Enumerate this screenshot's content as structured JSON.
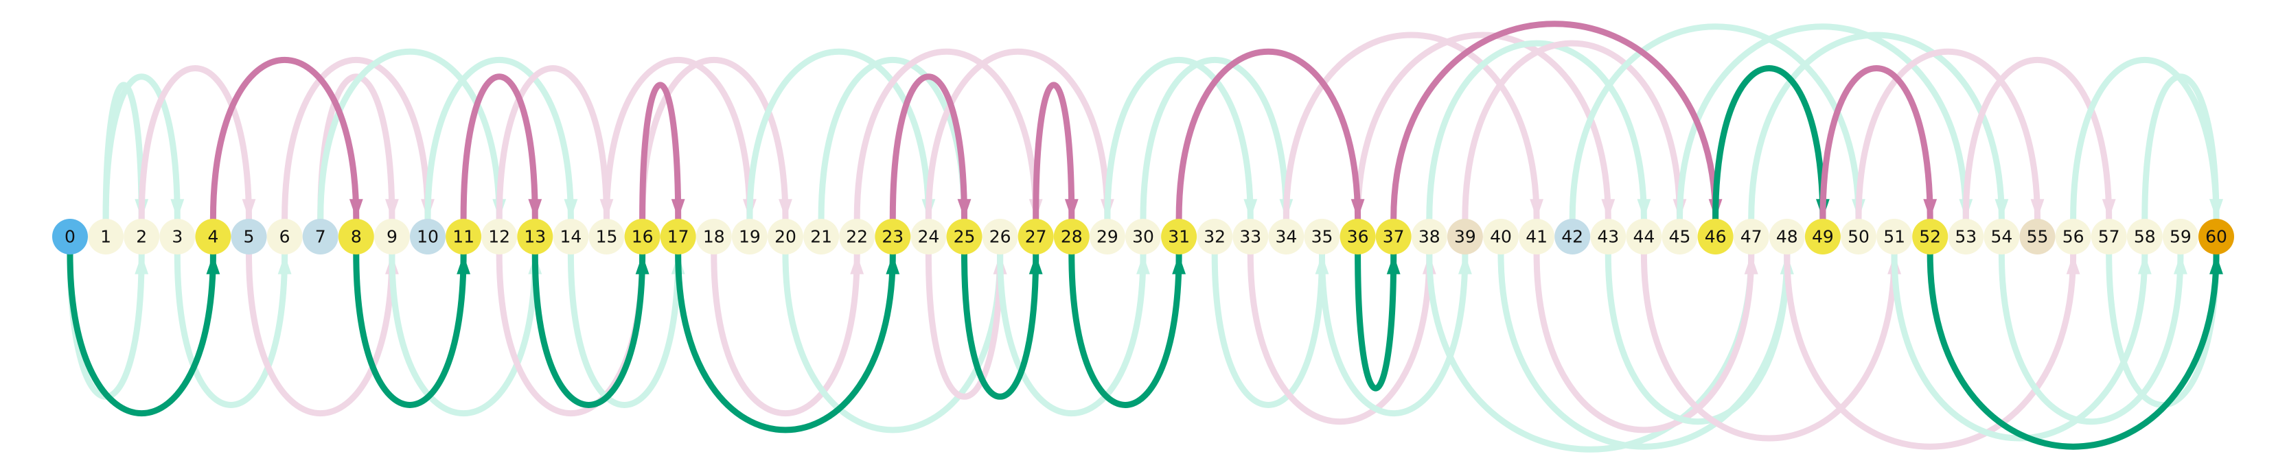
{
  "colors": {
    "green": "#009e73",
    "pink": "#cc79a7",
    "green_faint": "#cdf3e8",
    "pink_faint": "#f0d7e5",
    "node_default": "#f7f5dc",
    "node_yellow": "#f0e442",
    "node_blue": "#56b4e9",
    "node_lightblue": "#c3dde8",
    "node_beige": "#ebdfc4",
    "node_orange": "#e69f00"
  },
  "nodes": [
    {
      "label": "0",
      "color": "#56b4e9"
    },
    {
      "label": "1",
      "color": "#f7f5dc"
    },
    {
      "label": "2",
      "color": "#f7f5dc"
    },
    {
      "label": "3",
      "color": "#f7f5dc"
    },
    {
      "label": "4",
      "color": "#f0e442"
    },
    {
      "label": "5",
      "color": "#c3dde8"
    },
    {
      "label": "6",
      "color": "#f7f5dc"
    },
    {
      "label": "7",
      "color": "#c3dde8"
    },
    {
      "label": "8",
      "color": "#f0e442"
    },
    {
      "label": "9",
      "color": "#f7f5dc"
    },
    {
      "label": "10",
      "color": "#c3dde8"
    },
    {
      "label": "11",
      "color": "#f0e442"
    },
    {
      "label": "12",
      "color": "#f7f5dc"
    },
    {
      "label": "13",
      "color": "#f0e442"
    },
    {
      "label": "14",
      "color": "#f7f5dc"
    },
    {
      "label": "15",
      "color": "#f7f5dc"
    },
    {
      "label": "16",
      "color": "#f0e442"
    },
    {
      "label": "17",
      "color": "#f0e442"
    },
    {
      "label": "18",
      "color": "#f7f5dc"
    },
    {
      "label": "19",
      "color": "#f7f5dc"
    },
    {
      "label": "20",
      "color": "#f7f5dc"
    },
    {
      "label": "21",
      "color": "#f7f5dc"
    },
    {
      "label": "22",
      "color": "#f7f5dc"
    },
    {
      "label": "23",
      "color": "#f0e442"
    },
    {
      "label": "24",
      "color": "#f7f5dc"
    },
    {
      "label": "25",
      "color": "#f0e442"
    },
    {
      "label": "26",
      "color": "#f7f5dc"
    },
    {
      "label": "27",
      "color": "#f0e442"
    },
    {
      "label": "28",
      "color": "#f0e442"
    },
    {
      "label": "29",
      "color": "#f7f5dc"
    },
    {
      "label": "30",
      "color": "#f7f5dc"
    },
    {
      "label": "31",
      "color": "#f0e442"
    },
    {
      "label": "32",
      "color": "#f7f5dc"
    },
    {
      "label": "33",
      "color": "#f7f5dc"
    },
    {
      "label": "34",
      "color": "#f7f5dc"
    },
    {
      "label": "35",
      "color": "#f7f5dc"
    },
    {
      "label": "36",
      "color": "#f0e442"
    },
    {
      "label": "37",
      "color": "#f0e442"
    },
    {
      "label": "38",
      "color": "#f7f5dc"
    },
    {
      "label": "39",
      "color": "#ebdfc4"
    },
    {
      "label": "40",
      "color": "#f7f5dc"
    },
    {
      "label": "41",
      "color": "#f7f5dc"
    },
    {
      "label": "42",
      "color": "#c3dde8"
    },
    {
      "label": "43",
      "color": "#f7f5dc"
    },
    {
      "label": "44",
      "color": "#f7f5dc"
    },
    {
      "label": "45",
      "color": "#f7f5dc"
    },
    {
      "label": "46",
      "color": "#f0e442"
    },
    {
      "label": "47",
      "color": "#f7f5dc"
    },
    {
      "label": "48",
      "color": "#f7f5dc"
    },
    {
      "label": "49",
      "color": "#f0e442"
    },
    {
      "label": "50",
      "color": "#f7f5dc"
    },
    {
      "label": "51",
      "color": "#f7f5dc"
    },
    {
      "label": "52",
      "color": "#f0e442"
    },
    {
      "label": "53",
      "color": "#f7f5dc"
    },
    {
      "label": "54",
      "color": "#f7f5dc"
    },
    {
      "label": "55",
      "color": "#ebdfc4"
    },
    {
      "label": "56",
      "color": "#f7f5dc"
    },
    {
      "label": "57",
      "color": "#f7f5dc"
    },
    {
      "label": "58",
      "color": "#f7f5dc"
    },
    {
      "label": "59",
      "color": "#f7f5dc"
    },
    {
      "label": "60",
      "color": "#e69f00"
    }
  ],
  "highlighted_arcs": [
    {
      "from": 0,
      "to": 4,
      "side": "below",
      "color": "#009e73"
    },
    {
      "from": 4,
      "to": 8,
      "side": "above",
      "color": "#cc79a7"
    },
    {
      "from": 8,
      "to": 11,
      "side": "below",
      "color": "#009e73"
    },
    {
      "from": 11,
      "to": 13,
      "side": "above",
      "color": "#cc79a7"
    },
    {
      "from": 13,
      "to": 16,
      "side": "below",
      "color": "#009e73"
    },
    {
      "from": 16,
      "to": 17,
      "side": "above",
      "color": "#cc79a7"
    },
    {
      "from": 17,
      "to": 23,
      "side": "below",
      "color": "#009e73"
    },
    {
      "from": 23,
      "to": 25,
      "side": "above",
      "color": "#cc79a7"
    },
    {
      "from": 25,
      "to": 27,
      "side": "below",
      "color": "#009e73"
    },
    {
      "from": 27,
      "to": 28,
      "side": "above",
      "color": "#cc79a7"
    },
    {
      "from": 28,
      "to": 31,
      "side": "below",
      "color": "#009e73"
    },
    {
      "from": 31,
      "to": 36,
      "side": "above",
      "color": "#cc79a7"
    },
    {
      "from": 36,
      "to": 37,
      "side": "below",
      "color": "#009e73"
    },
    {
      "from": 37,
      "to": 46,
      "side": "above",
      "color": "#cc79a7"
    },
    {
      "from": 46,
      "to": 49,
      "side": "above",
      "color": "#009e73"
    },
    {
      "from": 49,
      "to": 52,
      "side": "above",
      "color": "#cc79a7"
    },
    {
      "from": 52,
      "to": 60,
      "side": "below",
      "color": "#009e73"
    }
  ],
  "faint_arcs": [
    {
      "from": 1,
      "to": 2,
      "side": "above",
      "color": "#cdf3e8"
    },
    {
      "from": 1,
      "to": 3,
      "side": "above",
      "color": "#cdf3e8"
    },
    {
      "from": 0,
      "to": 2,
      "side": "below",
      "color": "#cdf3e8"
    },
    {
      "from": 2,
      "to": 5,
      "side": "above",
      "color": "#f0d7e5"
    },
    {
      "from": 3,
      "to": 6,
      "side": "below",
      "color": "#cdf3e8"
    },
    {
      "from": 5,
      "to": 9,
      "side": "below",
      "color": "#f0d7e5"
    },
    {
      "from": 6,
      "to": 10,
      "side": "above",
      "color": "#f0d7e5"
    },
    {
      "from": 7,
      "to": 9,
      "side": "above",
      "color": "#f0d7e5"
    },
    {
      "from": 7,
      "to": 12,
      "side": "above",
      "color": "#cdf3e8"
    },
    {
      "from": 9,
      "to": 13,
      "side": "below",
      "color": "#cdf3e8"
    },
    {
      "from": 10,
      "to": 14,
      "side": "above",
      "color": "#cdf3e8"
    },
    {
      "from": 12,
      "to": 15,
      "side": "above",
      "color": "#f0d7e5"
    },
    {
      "from": 12,
      "to": 16,
      "side": "below",
      "color": "#f0d7e5"
    },
    {
      "from": 14,
      "to": 17,
      "side": "below",
      "color": "#cdf3e8"
    },
    {
      "from": 15,
      "to": 19,
      "side": "above",
      "color": "#f0d7e5"
    },
    {
      "from": 16,
      "to": 20,
      "side": "above",
      "color": "#f0d7e5"
    },
    {
      "from": 18,
      "to": 22,
      "side": "below",
      "color": "#f0d7e5"
    },
    {
      "from": 19,
      "to": 24,
      "side": "above",
      "color": "#cdf3e8"
    },
    {
      "from": 20,
      "to": 26,
      "side": "below",
      "color": "#cdf3e8"
    },
    {
      "from": 21,
      "to": 25,
      "side": "above",
      "color": "#cdf3e8"
    },
    {
      "from": 22,
      "to": 27,
      "side": "above",
      "color": "#f0d7e5"
    },
    {
      "from": 24,
      "to": 26,
      "side": "below",
      "color": "#f0d7e5"
    },
    {
      "from": 24,
      "to": 29,
      "side": "above",
      "color": "#f0d7e5"
    },
    {
      "from": 26,
      "to": 30,
      "side": "below",
      "color": "#cdf3e8"
    },
    {
      "from": 29,
      "to": 33,
      "side": "above",
      "color": "#cdf3e8"
    },
    {
      "from": 30,
      "to": 34,
      "side": "above",
      "color": "#cdf3e8"
    },
    {
      "from": 32,
      "to": 35,
      "side": "below",
      "color": "#cdf3e8"
    },
    {
      "from": 33,
      "to": 38,
      "side": "below",
      "color": "#f0d7e5"
    },
    {
      "from": 34,
      "to": 41,
      "side": "above",
      "color": "#f0d7e5"
    },
    {
      "from": 35,
      "to": 39,
      "side": "below",
      "color": "#cdf3e8"
    },
    {
      "from": 36,
      "to": 43,
      "side": "above",
      "color": "#f0d7e5"
    },
    {
      "from": 38,
      "to": 44,
      "side": "above",
      "color": "#cdf3e8"
    },
    {
      "from": 38,
      "to": 47,
      "side": "below",
      "color": "#cdf3e8"
    },
    {
      "from": 39,
      "to": 45,
      "side": "above",
      "color": "#f0d7e5"
    },
    {
      "from": 40,
      "to": 48,
      "side": "below",
      "color": "#cdf3e8"
    },
    {
      "from": 41,
      "to": 47,
      "side": "below",
      "color": "#f0d7e5"
    },
    {
      "from": 42,
      "to": 50,
      "side": "above",
      "color": "#cdf3e8"
    },
    {
      "from": 43,
      "to": 48,
      "side": "below",
      "color": "#cdf3e8"
    },
    {
      "from": 44,
      "to": 51,
      "side": "below",
      "color": "#f0d7e5"
    },
    {
      "from": 45,
      "to": 53,
      "side": "above",
      "color": "#cdf3e8"
    },
    {
      "from": 47,
      "to": 54,
      "side": "above",
      "color": "#cdf3e8"
    },
    {
      "from": 48,
      "to": 56,
      "side": "below",
      "color": "#f0d7e5"
    },
    {
      "from": 50,
      "to": 55,
      "side": "above",
      "color": "#f0d7e5"
    },
    {
      "from": 51,
      "to": 58,
      "side": "below",
      "color": "#cdf3e8"
    },
    {
      "from": 53,
      "to": 57,
      "side": "above",
      "color": "#f0d7e5"
    },
    {
      "from": 54,
      "to": 59,
      "side": "below",
      "color": "#cdf3e8"
    },
    {
      "from": 56,
      "to": 60,
      "side": "above",
      "color": "#cdf3e8"
    },
    {
      "from": 57,
      "to": 60,
      "side": "below",
      "color": "#cdf3e8"
    },
    {
      "from": 58,
      "to": 60,
      "side": "above",
      "color": "#cdf3e8"
    }
  ]
}
